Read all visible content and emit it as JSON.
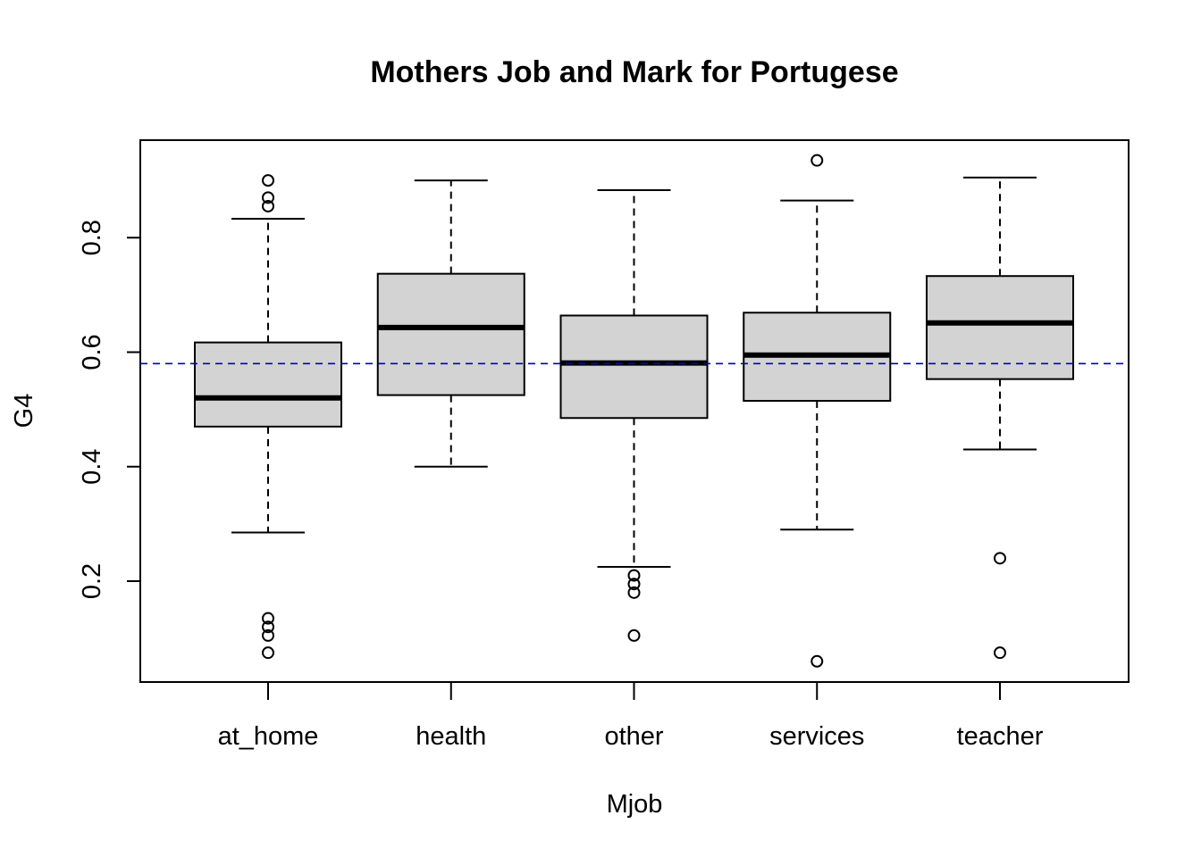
{
  "chart_data": {
    "type": "boxplot",
    "title": "Mothers Job and Mark for Portugese",
    "xlabel": "Mjob",
    "ylabel": "G4",
    "categories": [
      "at_home",
      "health",
      "other",
      "services",
      "teacher"
    ],
    "yticks": [
      "0.2",
      "0.4",
      "0.6",
      "0.8"
    ],
    "ylim": [
      0.05,
      0.95
    ],
    "reference_line": {
      "y": 0.58,
      "color": "#0000cc",
      "style": "dashed"
    },
    "box_fill": "#d3d3d3",
    "boxes": [
      {
        "category": "at_home",
        "whisker_low": 0.285,
        "q1": 0.47,
        "median": 0.52,
        "q3": 0.617,
        "whisker_high": 0.833,
        "outliers": [
          0.9,
          0.87,
          0.855,
          0.135,
          0.12,
          0.105,
          0.075
        ]
      },
      {
        "category": "health",
        "whisker_low": 0.4,
        "q1": 0.525,
        "median": 0.643,
        "q3": 0.737,
        "whisker_high": 0.9,
        "outliers": []
      },
      {
        "category": "other",
        "whisker_low": 0.225,
        "q1": 0.485,
        "median": 0.581,
        "q3": 0.664,
        "whisker_high": 0.883,
        "outliers": [
          0.21,
          0.195,
          0.18,
          0.105
        ]
      },
      {
        "category": "services",
        "whisker_low": 0.29,
        "q1": 0.515,
        "median": 0.595,
        "q3": 0.669,
        "whisker_high": 0.865,
        "outliers": [
          0.935,
          0.06
        ]
      },
      {
        "category": "teacher",
        "whisker_low": 0.43,
        "q1": 0.553,
        "median": 0.651,
        "q3": 0.733,
        "whisker_high": 0.905,
        "outliers": [
          0.24,
          0.075
        ]
      }
    ]
  }
}
